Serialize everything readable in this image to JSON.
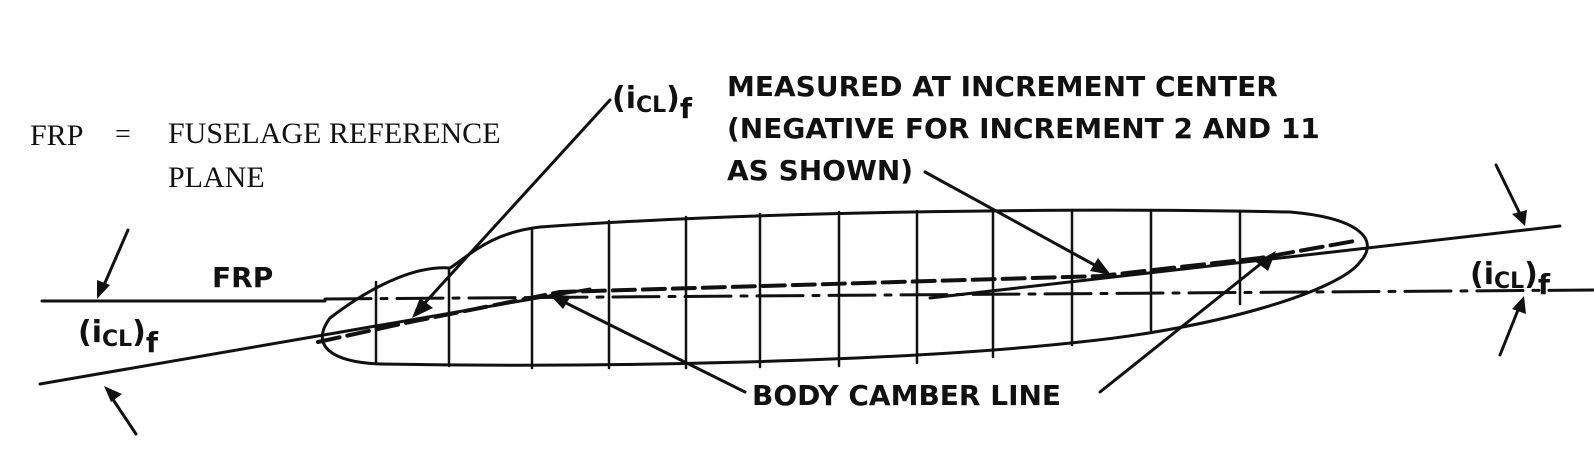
{
  "legend": {
    "abbr": "FRP",
    "equals": "=",
    "line1": "FUSELAGE REFERENCE",
    "line2": "PLANE"
  },
  "labels": {
    "frp": "FRP",
    "i_sym": "(i",
    "i_sub": "CL",
    "i_close": ")",
    "i_f": "f",
    "note_line1": "MEASURED AT INCREMENT CENTER",
    "note_line2": "(NEGATIVE FOR INCREMENT 2 AND 11",
    "note_line3": "AS SHOWN)",
    "camber": "BODY CAMBER LINE"
  },
  "colors": {
    "ink": "#111111",
    "paper": "#ffffff"
  }
}
